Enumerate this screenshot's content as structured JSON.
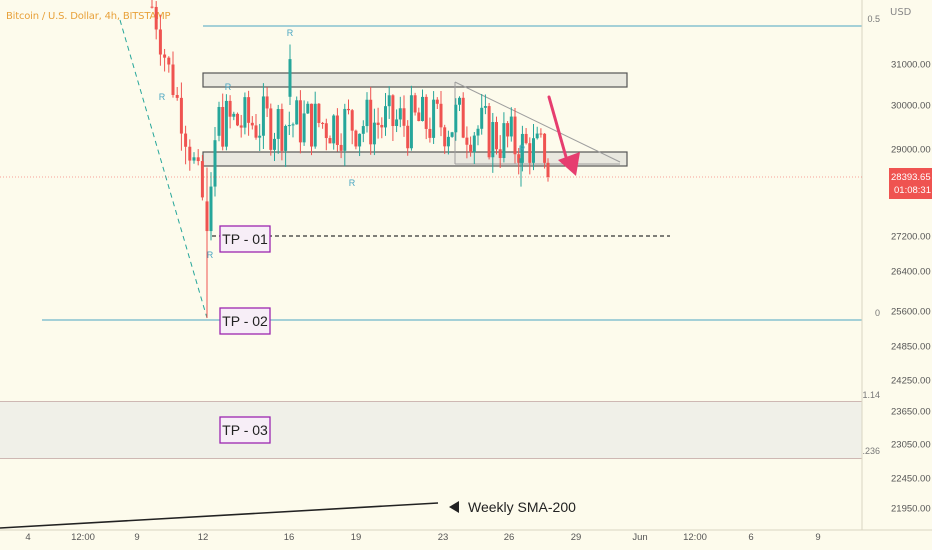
{
  "header": {
    "title": "Bitcoin / U.S. Dollar, 4h, BITSTAMP",
    "currency": "USD"
  },
  "chart_data": {
    "type": "candlestick",
    "y_ticks": [
      {
        "label": "31000.00",
        "value": 31000
      },
      {
        "label": "30000.00",
        "value": 30000
      },
      {
        "label": "29000.00",
        "value": 29000
      },
      {
        "label": "27200.00",
        "value": 27200
      },
      {
        "label": "26400.00",
        "value": 26400
      },
      {
        "label": "25600.00",
        "value": 25600
      },
      {
        "label": "24850.00",
        "value": 24850
      },
      {
        "label": "24250.00",
        "value": 24250
      },
      {
        "label": "23650.00",
        "value": 23650
      },
      {
        "label": "23050.00",
        "value": 23050
      },
      {
        "label": "22450.00",
        "value": 22450
      },
      {
        "label": "21950.00",
        "value": 21950
      }
    ],
    "x_ticks": [
      "4",
      "12:00",
      "9",
      "12",
      "16",
      "19",
      "23",
      "26",
      "29",
      "Jun",
      "12:00",
      "6",
      "9"
    ],
    "current_price": {
      "label": "28393.65",
      "countdown": "01:08:31",
      "value": 28393.65
    },
    "fib_levels": [
      {
        "label": "0.5",
        "value": 31900
      },
      {
        "label": "0",
        "value": 25400
      },
      {
        "label": "1.14",
        "value": 23850
      },
      {
        "label": "1.236",
        "value": 23200
      }
    ],
    "boxes": [
      {
        "name": "resistance",
        "low": 30450,
        "high": 30800
      },
      {
        "name": "support",
        "low": 28560,
        "high": 28900
      },
      {
        "name": "tp3-zone",
        "low": 23200,
        "high": 23850
      }
    ],
    "targets": [
      {
        "label": "TP - 01",
        "value": 27100
      },
      {
        "label": "TP - 02",
        "value": 25400
      },
      {
        "label": "TP - 03",
        "value": 23350
      }
    ],
    "annotation": "Weekly SMA-200",
    "pattern_marker": "R",
    "colors": {
      "up": "#26a69a",
      "down": "#ef5350",
      "level": "#4ba6c2",
      "fib": "#a0767a",
      "target": "#9c27b0",
      "arrow": "#e63d6f",
      "title": "#e8a13a"
    }
  }
}
